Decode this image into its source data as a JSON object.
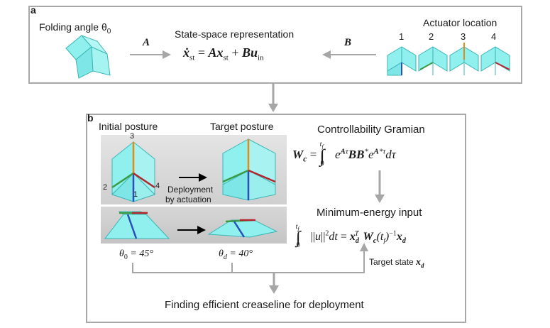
{
  "panel_a": {
    "letter": "a",
    "folding_angle_label": "Folding angle θ",
    "folding_angle_sub": "0",
    "state_space_title": "State-space representation",
    "arrow_A": "A",
    "arrow_B": "B",
    "actuator_title": "Actuator location",
    "actuator_numbers": [
      "1",
      "2",
      "3",
      "4"
    ],
    "actuator_colors": [
      "#2a4fb6",
      "#3a9a45",
      "#e08b1a",
      "#b3262e"
    ]
  },
  "panel_b": {
    "letter": "b",
    "initial_posture": "Initial posture",
    "target_posture": "Target posture",
    "crease_numbers": [
      "3",
      "2",
      "1",
      "4"
    ],
    "deployment_line1": "Deployment",
    "deployment_line2": "by actuation",
    "theta0_value": "= 45°",
    "thetad_value": "= 40°",
    "controllability_title": "Controllability Gramian",
    "minimum_energy_title": "Minimum-energy input",
    "target_state_label": "Target state",
    "finding_label": "Finding efficient creaseline for deployment"
  },
  "colors": {
    "cyan": "#8ff0ee",
    "arrow_gray": "#a6a6a6",
    "box_border": "#a8a8a8"
  }
}
